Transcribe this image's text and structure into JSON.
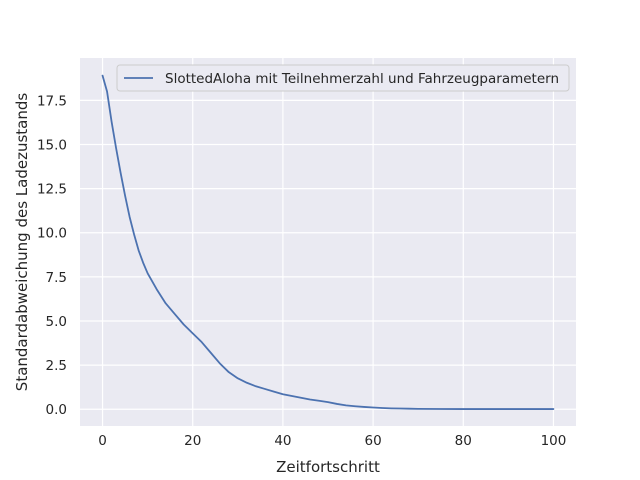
{
  "chart_data": {
    "type": "line",
    "title": "",
    "xlabel": "Zeitfortschritt",
    "ylabel": "Standardabweichung des Ladezustands",
    "xlim": [
      -5,
      105
    ],
    "ylim": [
      -0.95,
      19.9
    ],
    "x_ticks": [
      0,
      20,
      40,
      60,
      80,
      100
    ],
    "y_ticks": [
      0.0,
      2.5,
      5.0,
      7.5,
      10.0,
      12.5,
      15.0,
      17.5
    ],
    "x_tick_labels": [
      "0",
      "20",
      "40",
      "60",
      "80",
      "100"
    ],
    "y_tick_labels": [
      "0.0",
      "2.5",
      "5.0",
      "7.5",
      "10.0",
      "12.5",
      "15.0",
      "17.5"
    ],
    "grid": true,
    "legend": {
      "location": "top-right"
    },
    "series": [
      {
        "name": "SlottedAloha mit Teilnehmerzahl und Fahrzeugparametern",
        "color": "#4c72b0",
        "x": [
          0,
          1,
          2,
          3,
          4,
          5,
          6,
          7,
          8,
          9,
          10,
          12,
          14,
          16,
          18,
          20,
          22,
          24,
          26,
          28,
          30,
          32,
          34,
          36,
          38,
          40,
          42,
          44,
          46,
          48,
          50,
          52,
          54,
          56,
          58,
          60,
          62,
          64,
          66,
          68,
          70,
          75,
          80,
          85,
          90,
          95,
          100
        ],
        "y": [
          18.9,
          18.0,
          16.3,
          14.8,
          13.4,
          12.1,
          10.9,
          9.9,
          9.0,
          8.3,
          7.7,
          6.8,
          6.0,
          5.4,
          4.8,
          4.3,
          3.8,
          3.2,
          2.6,
          2.1,
          1.75,
          1.5,
          1.3,
          1.15,
          1.0,
          0.85,
          0.75,
          0.65,
          0.55,
          0.48,
          0.4,
          0.3,
          0.22,
          0.17,
          0.13,
          0.1,
          0.07,
          0.05,
          0.04,
          0.03,
          0.02,
          0.015,
          0.01,
          0.01,
          0.01,
          0.01,
          0.01
        ]
      }
    ]
  },
  "colors": {
    "plot_background": "#eaeaf2",
    "grid": "#ffffff",
    "text": "#262626"
  }
}
